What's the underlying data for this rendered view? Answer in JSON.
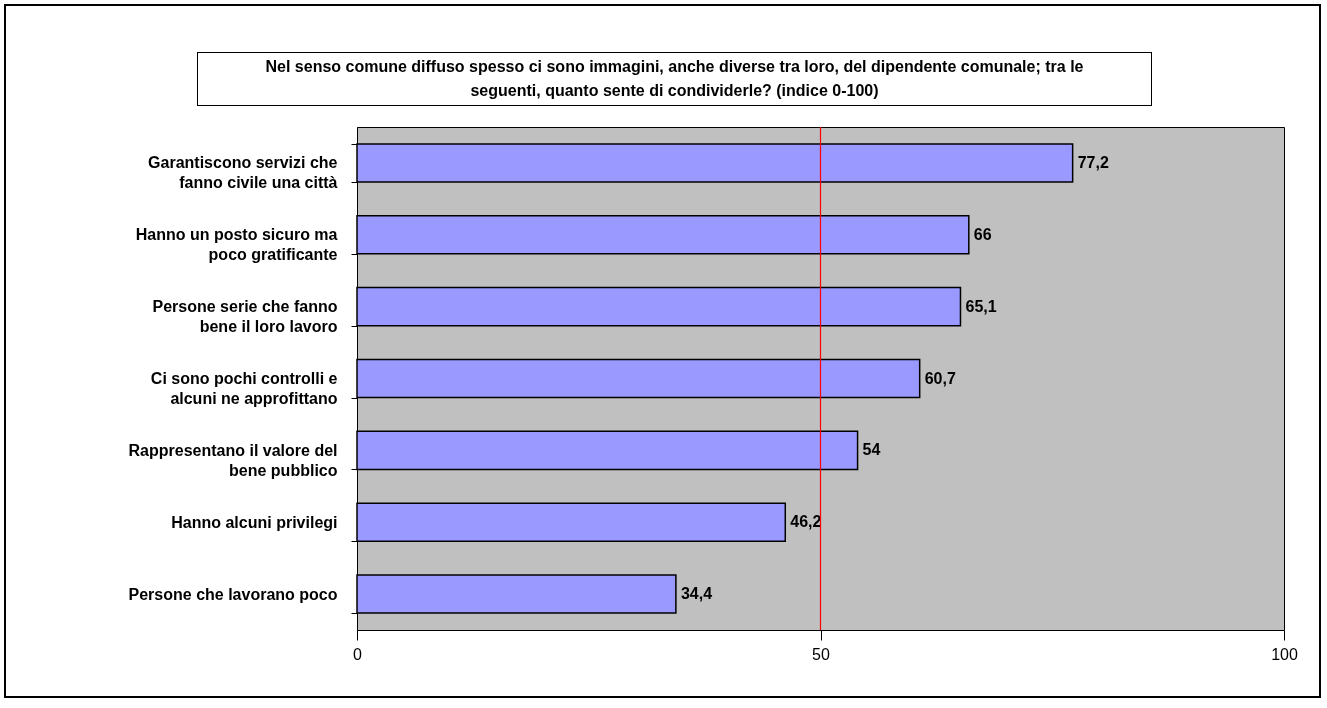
{
  "chart_data": {
    "type": "bar",
    "orientation": "horizontal",
    "title": "Nel senso comune diffuso spesso ci sono immagini, anche diverse tra loro, del dipendente comunale; tra le seguenti, quanto sente di condividerle? (indice 0-100)",
    "categories": [
      "Garantiscono servizi che\nfanno civile una città",
      "Hanno un posto sicuro ma\npoco gratificante",
      "Persone serie che fanno\nbene il loro lavoro",
      "Ci sono pochi controlli e\nalcuni ne approfittano",
      "Rappresentano il valore del\nbene pubblico",
      "Hanno alcuni privilegi",
      "Persone che lavorano poco"
    ],
    "values": [
      77.2,
      66,
      65.1,
      60.7,
      54,
      46.2,
      34.4
    ],
    "value_labels": [
      "77,2",
      "66",
      "65,1",
      "60,7",
      "54",
      "46,2",
      "34,4"
    ],
    "color": "#9999ff",
    "xlim": [
      0,
      100
    ],
    "xticks": [
      0,
      50,
      100
    ],
    "ref_lines": [
      {
        "axis": "x",
        "value": 50,
        "color": "#ff0000"
      }
    ]
  }
}
